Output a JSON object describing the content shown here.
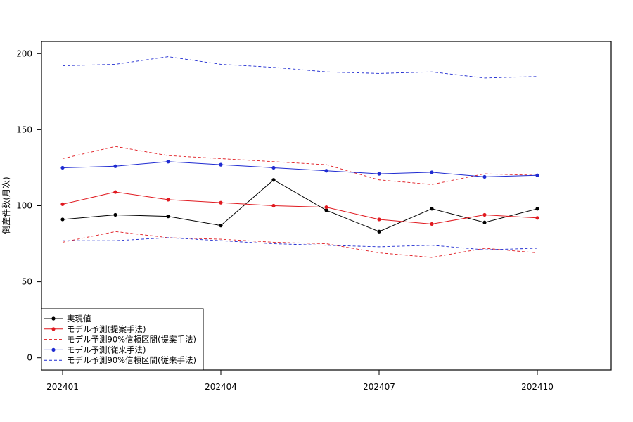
{
  "chart_data": {
    "type": "line",
    "title": "",
    "xlabel": "",
    "ylabel": "倒産件数(月次)",
    "x": [
      202401,
      202402,
      202403,
      202404,
      202405,
      202406,
      202407,
      202408,
      202409,
      202410
    ],
    "xticks": [
      "202401",
      "202404",
      "202407",
      "202410"
    ],
    "yticks": [
      0,
      50,
      100,
      150,
      200
    ],
    "ylim": [
      -8,
      208
    ],
    "grid": false,
    "legend_position": "bottom-left",
    "series": [
      {
        "name": "実現値",
        "color": "#000000",
        "style": "solid",
        "marker": true,
        "values": [
          91,
          94,
          93,
          87,
          117,
          97,
          83,
          98,
          89,
          98
        ]
      },
      {
        "name": "モデル予測(提案手法)",
        "color": "#e0191f",
        "style": "solid",
        "marker": true,
        "values": [
          101,
          109,
          104,
          102,
          100,
          99,
          91,
          88,
          94,
          92
        ]
      },
      {
        "name": "モデル予測90%信頼区間(提案手法)",
        "color": "#e0191f",
        "style": "dashed",
        "marker": false,
        "values": [
          131,
          139,
          133,
          131,
          129,
          127,
          117,
          114,
          121,
          120
        ]
      },
      {
        "name": "モデル予測90%信頼区間(提案手法)",
        "color": "#e0191f",
        "style": "dashed",
        "marker": false,
        "legend": false,
        "values": [
          76,
          83,
          79,
          78,
          76,
          75,
          69,
          66,
          72,
          69
        ]
      },
      {
        "name": "モデル予測(従来手法)",
        "color": "#1f2bd1",
        "style": "solid",
        "marker": true,
        "values": [
          125,
          126,
          129,
          127,
          125,
          123,
          121,
          122,
          119,
          120
        ]
      },
      {
        "name": "モデル予測90%信頼区間(従来手法)",
        "color": "#1f2bd1",
        "style": "dashed",
        "marker": false,
        "values": [
          192,
          193,
          198,
          193,
          191,
          188,
          187,
          188,
          184,
          185
        ]
      },
      {
        "name": "モデル予測90%信頼区間(従来手法)",
        "color": "#1f2bd1",
        "style": "dashed",
        "marker": false,
        "legend": false,
        "values": [
          77,
          77,
          79,
          77,
          75,
          74,
          73,
          74,
          71,
          72
        ]
      }
    ]
  }
}
